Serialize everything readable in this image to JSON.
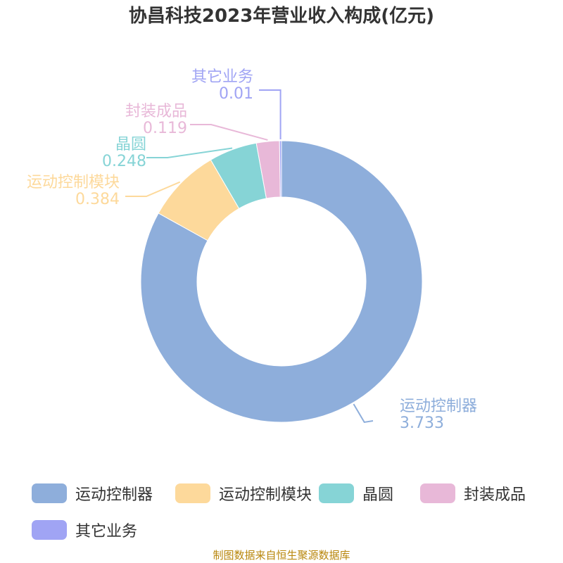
{
  "title": "协昌科技2023年营业收入构成(亿元)",
  "source": "制图数据来自恒生聚源数据库",
  "chart_data": {
    "type": "pie",
    "donut": true,
    "unit": "亿元",
    "slices": [
      {
        "name": "运动控制器",
        "value": 3.733,
        "value_label": "3.733",
        "color": "#8eaedb"
      },
      {
        "name": "运动控制模块",
        "value": 0.384,
        "value_label": "0.384",
        "color": "#fdd99b"
      },
      {
        "name": "晶圆",
        "value": 0.248,
        "value_label": "0.248",
        "color": "#86d4d6"
      },
      {
        "name": "封装成品",
        "value": 0.119,
        "value_label": "0.119",
        "color": "#e8b8d8"
      },
      {
        "name": "其它业务",
        "value": 0.01,
        "value_label": "0.01",
        "color": "#a0a4f4"
      }
    ],
    "legend": [
      "运动控制器",
      "运动控制模块",
      "晶圆",
      "封装成品",
      "其它业务"
    ],
    "legend_position": "bottom"
  }
}
